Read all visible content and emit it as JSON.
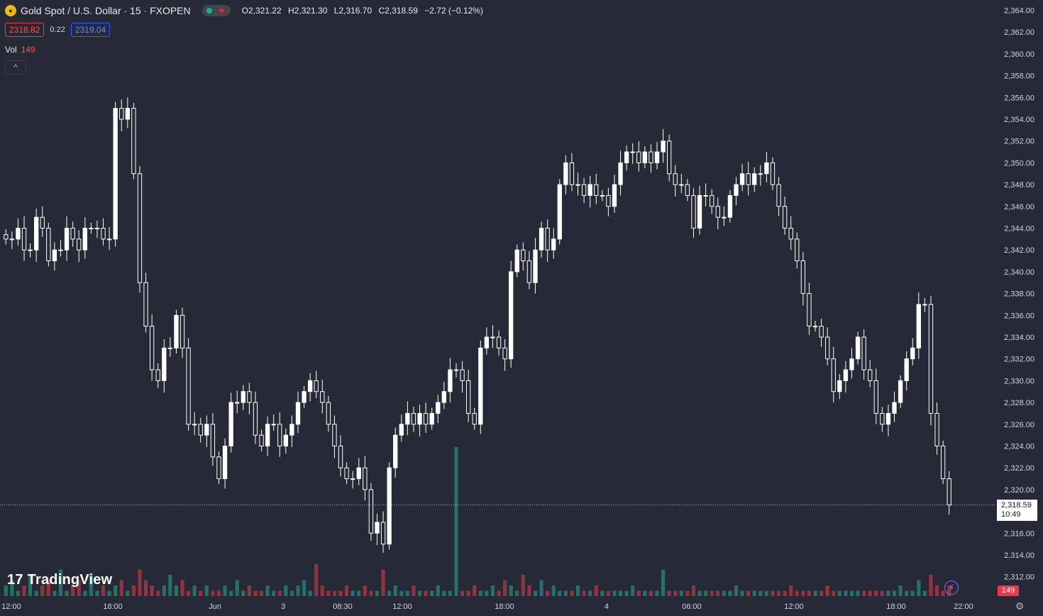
{
  "header": {
    "symbol_title": "Gold Spot / U.S. Dollar · 15 · FXOPEN",
    "ohlc": {
      "open": "O2,321.22",
      "high": "H2,321.30",
      "low": "L2,316.70",
      "close": "C2,318.59",
      "change": "−2.72 (−0.12%)"
    },
    "bid": "2318.82",
    "spread": "0.22",
    "ask": "2319.04",
    "vol_label": "Vol",
    "vol_value": "149",
    "collapse_glyph": "^"
  },
  "branding": {
    "logo_text": "TradingView",
    "logo_mark": "17"
  },
  "price_tag": {
    "price": "2,318.59",
    "countdown": "10:49"
  },
  "volume_tag": "149",
  "colors": {
    "background": "#262a36",
    "candle": "#ffffff",
    "volume_up": "#22ab94",
    "volume_down": "#f23645",
    "axis_text": "#d1d4dc"
  },
  "icons": [
    "gold-coin-icon",
    "market-status-icon",
    "collapse-chevron-icon",
    "lightning-icon",
    "gear-icon"
  ],
  "chart_data": {
    "type": "candlestick",
    "ylim": [
      2311,
      2365
    ],
    "y_ticks": [
      "2,312.00",
      "2,314.00",
      "2,316.00",
      "2,318.00",
      "2,320.00",
      "2,322.00",
      "2,324.00",
      "2,326.00",
      "2,328.00",
      "2,330.00",
      "2,332.00",
      "2,334.00",
      "2,336.00",
      "2,338.00",
      "2,340.00",
      "2,342.00",
      "2,344.00",
      "2,346.00",
      "2,348.00",
      "2,350.00",
      "2,352.00",
      "2,354.00",
      "2,356.00",
      "2,358.00",
      "2,360.00",
      "2,362.00",
      "2,364.00"
    ],
    "x_ticks": [
      "12:00",
      "18:00",
      "Jun",
      "3",
      "08:30",
      "12:00",
      "18:00",
      "4",
      "06:00",
      "12:00",
      "18:00",
      "22:00"
    ],
    "last_price": 2318.59,
    "close_path": [
      2343,
      2343,
      2344,
      2342,
      2342,
      2345,
      2344,
      2341,
      2342,
      2342,
      2344,
      2343,
      2342,
      2344,
      2344,
      2344,
      2343,
      2343,
      2355,
      2354,
      2355,
      2349,
      2339,
      2335,
      2331,
      2330,
      2333,
      2333,
      2336,
      2333,
      2326,
      2326,
      2325,
      2326,
      2323,
      2321,
      2324,
      2328,
      2328,
      2329,
      2328,
      2325,
      2324,
      2326,
      2326,
      2324,
      2325,
      2326,
      2328,
      2329,
      2330,
      2329,
      2328,
      2326,
      2324,
      2322,
      2321,
      2321,
      2322,
      2320,
      2316,
      2317,
      2315,
      2322,
      2325,
      2326,
      2327,
      2326,
      2327,
      2326,
      2327,
      2328,
      2329,
      2331,
      2331,
      2330,
      2327,
      2326,
      2333,
      2334,
      2334,
      2333,
      2332,
      2340,
      2342,
      2341,
      2339,
      2342,
      2344,
      2342,
      2343,
      2348,
      2350,
      2348,
      2348,
      2347,
      2348,
      2347,
      2347,
      2346,
      2348,
      2350,
      2351,
      2351,
      2350,
      2351,
      2350,
      2351,
      2352,
      2349,
      2348,
      2348,
      2347,
      2344,
      2347,
      2347,
      2346,
      2345,
      2345,
      2347,
      2348,
      2349,
      2348,
      2349,
      2349,
      2350,
      2348,
      2346,
      2344,
      2343,
      2341,
      2338,
      2335,
      2335,
      2334,
      2332,
      2329,
      2330,
      2331,
      2332,
      2334,
      2331,
      2330,
      2327,
      2326,
      2327,
      2328,
      2330,
      2332,
      2333,
      2337,
      2337,
      2327,
      2324,
      2321,
      2318.59
    ],
    "volume_path": [
      2,
      3,
      1,
      2,
      4,
      1,
      2,
      3,
      1,
      5,
      1,
      2,
      3,
      1,
      4,
      1,
      2,
      1,
      2,
      3,
      1,
      2,
      5,
      3,
      2,
      1,
      2,
      4,
      2,
      3,
      1,
      2,
      1,
      2,
      1,
      1,
      2,
      1,
      3,
      1,
      2,
      1,
      1,
      2,
      1,
      1,
      2,
      1,
      2,
      3,
      1,
      6,
      2,
      1,
      1,
      1,
      2,
      1,
      1,
      2,
      1,
      1,
      5,
      1,
      2,
      1,
      1,
      2,
      1,
      1,
      1,
      2,
      1,
      1,
      28,
      1,
      1,
      2,
      1,
      1,
      2,
      1,
      3,
      2,
      1,
      4,
      2,
      1,
      3,
      1,
      2,
      1,
      1,
      1,
      2,
      1,
      1,
      2,
      1,
      1,
      1,
      1,
      1,
      2,
      1,
      1,
      1,
      1,
      5,
      1,
      1,
      1,
      1,
      2,
      1,
      1,
      1,
      1,
      1,
      1,
      2,
      1,
      1,
      1,
      1,
      1,
      1,
      1,
      1,
      2,
      1,
      1,
      1,
      1,
      1,
      2,
      1,
      1,
      1,
      1,
      1,
      1,
      1,
      1,
      1,
      1,
      1,
      2,
      1,
      1,
      3,
      1,
      4,
      2,
      1,
      2
    ]
  }
}
